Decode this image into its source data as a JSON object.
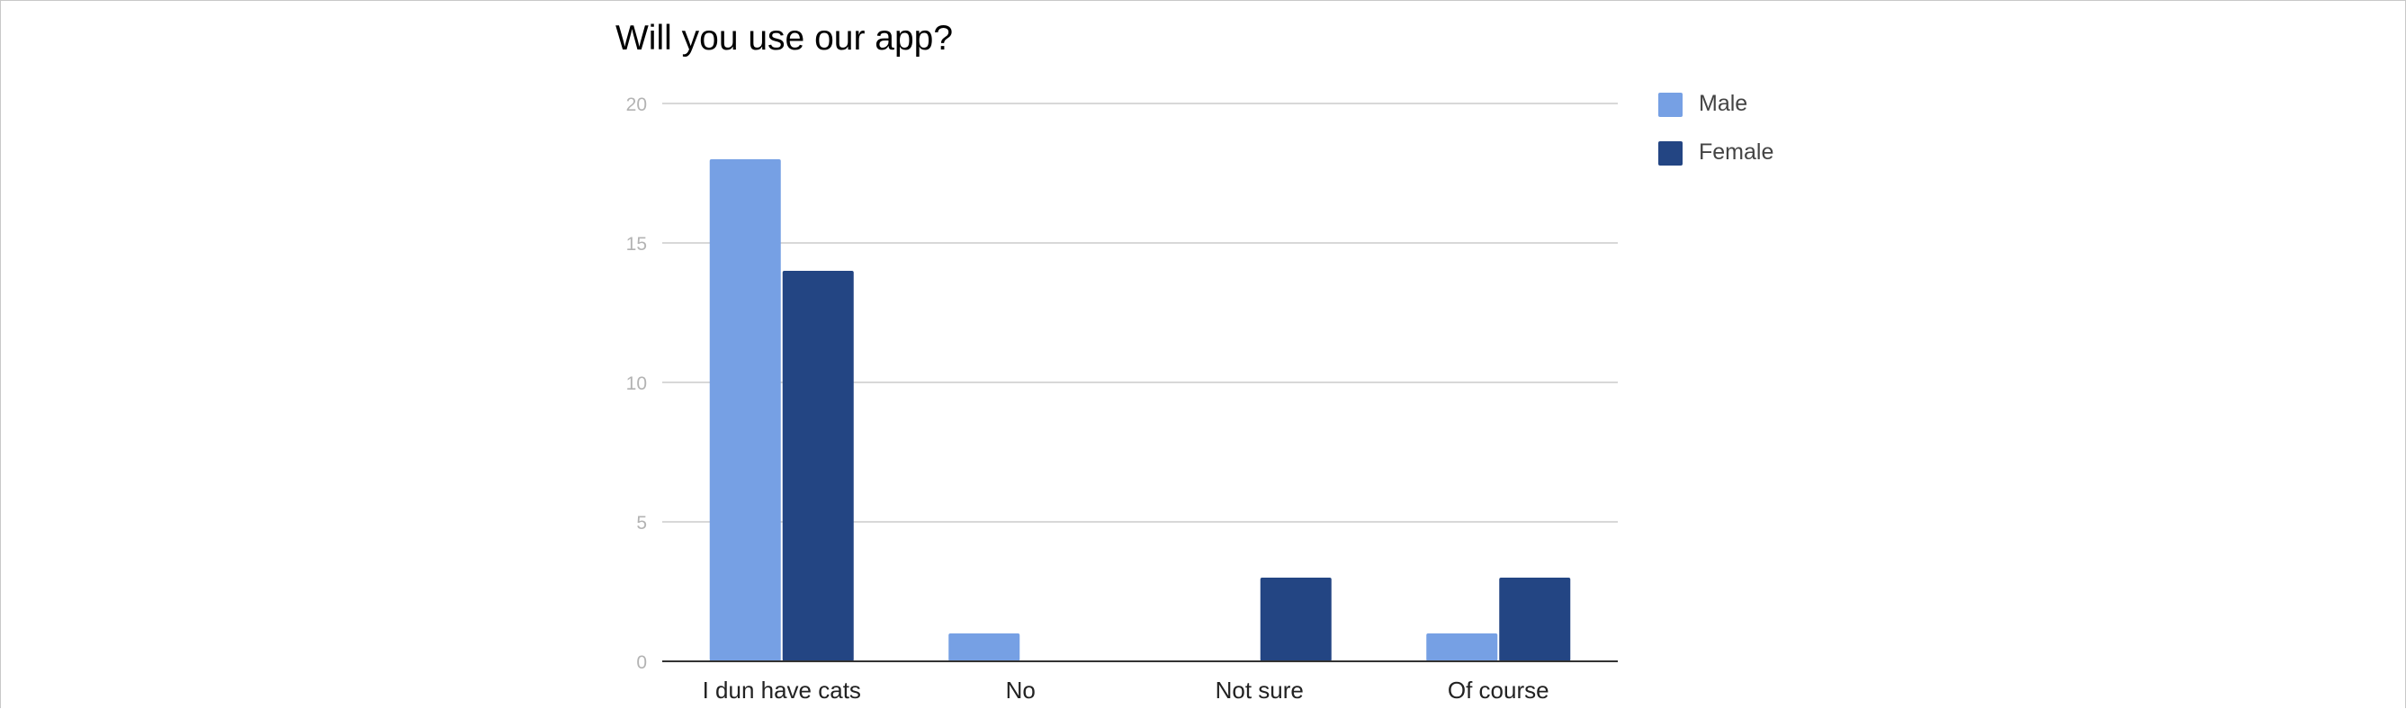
{
  "chart_data": {
    "type": "bar",
    "title": "Will you use our app?",
    "xlabel": "",
    "ylabel": "",
    "categories": [
      "I dun have cats",
      "No",
      "Not sure",
      "Of course"
    ],
    "series": [
      {
        "name": "Male",
        "values": [
          18,
          1,
          0,
          1
        ],
        "color": "#76a0e4"
      },
      {
        "name": "Female",
        "values": [
          14,
          0,
          3,
          3
        ],
        "color": "#234583"
      }
    ],
    "ylim": [
      0,
      20
    ],
    "yticks": [
      0,
      5,
      10,
      15,
      20
    ],
    "grid": true,
    "legend": "right"
  }
}
